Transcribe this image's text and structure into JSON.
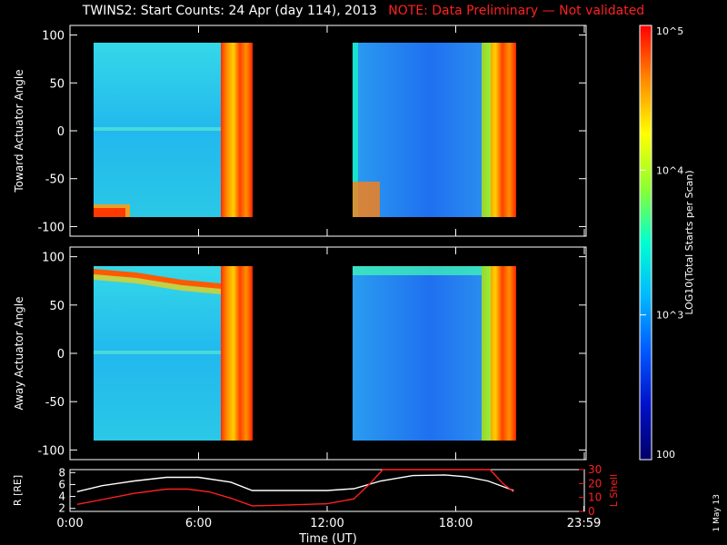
{
  "title": "TWINS2: Start Counts: 24 Apr (day 114), 2013",
  "note": "NOTE: Data Preliminary — Not validated",
  "side_date": "1 May 13",
  "chart_data": [
    {
      "type": "heatmap",
      "ylabel": "Toward Actuator Angle",
      "ylim": [
        -110,
        110
      ],
      "yticks": [
        100,
        50,
        0,
        -50,
        -100
      ],
      "xlim": [
        0,
        24
      ],
      "data_coverage_hours": [
        [
          0.33,
          8.5
        ],
        [
          13.25,
          20.7
        ]
      ]
    },
    {
      "type": "heatmap",
      "ylabel": "Away Actuator Angle",
      "ylim": [
        -110,
        110
      ],
      "yticks": [
        100,
        50,
        0,
        -50,
        -100
      ],
      "xlim": [
        0,
        24
      ],
      "data_coverage_hours": [
        [
          0.33,
          8.5
        ],
        [
          13.25,
          20.7
        ]
      ]
    },
    {
      "type": "line",
      "ylabel": "R [RE]",
      "ylabel_right": "L Shell",
      "xlabel": "Time (UT)",
      "xticks": [
        "0:00",
        "6:00",
        "12:00",
        "18:00",
        "23:59"
      ],
      "xtick_hours": [
        0,
        6,
        12,
        18,
        23.98
      ],
      "yticks_left": [
        2,
        4,
        6,
        8
      ],
      "ylim_left": [
        1.5,
        8.5
      ],
      "yticks_right": [
        0,
        10,
        20,
        30
      ],
      "ylim_right": [
        0,
        30
      ],
      "series": [
        {
          "color": "#ffffff",
          "x": [
            0.33,
            1.5,
            3,
            4.5,
            6,
            7.5,
            8.5,
            10,
            12,
            13.25,
            14.5,
            16,
            17.5,
            18.5,
            19.5,
            20.7
          ],
          "y": [
            4.8,
            5.8,
            6.6,
            7.2,
            7.2,
            6.4,
            5.0,
            5.0,
            5.0,
            5.3,
            6.6,
            7.5,
            7.6,
            7.3,
            6.6,
            5.0
          ]
        },
        {
          "color": "#ff2020",
          "axis": "right",
          "x": [
            0.33,
            1.5,
            3,
            4.5,
            5.5,
            6.5,
            7.5,
            8.5,
            10,
            12,
            13.25,
            14,
            14.6,
            19.6,
            20.2,
            20.7
          ],
          "y": [
            5,
            8.5,
            13,
            16,
            16,
            14,
            9.5,
            4,
            4.5,
            5.5,
            9,
            20,
            31,
            31,
            20,
            14
          ]
        }
      ]
    }
  ],
  "colorbar": {
    "label": "LOG10(Total Starts per Scan)",
    "labels": [
      "10^5",
      "10^4",
      "10^3",
      "100"
    ],
    "values": [
      100000,
      10000,
      1000,
      100
    ],
    "stops": [
      "#ff0000",
      "#ff8a00",
      "#ffff00",
      "#8cff30",
      "#00ffd0",
      "#00b8ff",
      "#0058ff",
      "#0010c8",
      "#000066"
    ]
  }
}
